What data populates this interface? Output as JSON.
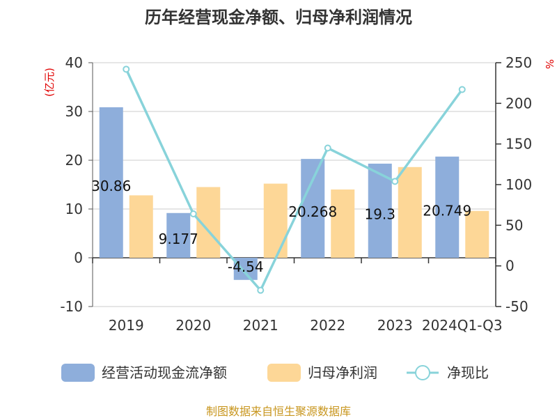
{
  "chart_data": {
    "type": "bar",
    "title": "历年经营现金净额、归母净利润情况",
    "categories": [
      "2019",
      "2020",
      "2021",
      "2022",
      "2023",
      "2024Q1-Q3"
    ],
    "series": [
      {
        "name": "经营活动现金流净额",
        "type": "bar",
        "axis": "left",
        "color": "#8eaedb",
        "values": [
          30.86,
          9.177,
          -4.54,
          20.268,
          19.3,
          20.749
        ],
        "labels": [
          "30.86",
          "9.177",
          "-4.54",
          "20.268",
          "19.3",
          "20.749"
        ]
      },
      {
        "name": "归母净利润",
        "type": "bar",
        "axis": "left",
        "color": "#fdd797",
        "values": [
          12.8,
          14.5,
          15.2,
          14.0,
          18.6,
          9.6
        ]
      },
      {
        "name": "净现比",
        "type": "line",
        "axis": "right",
        "color": "#88d3da",
        "values": [
          242,
          64,
          -30,
          145,
          104,
          217
        ]
      }
    ],
    "left_axis": {
      "unit": "(亿元)",
      "ylim": [
        -10,
        40
      ],
      "ticks": [
        -10,
        0,
        10,
        20,
        30,
        40
      ]
    },
    "right_axis": {
      "unit": "%",
      "ylim": [
        -50,
        250
      ],
      "ticks": [
        -50,
        0,
        50,
        100,
        150,
        200,
        250
      ]
    },
    "grid": true,
    "legend": "bottom"
  },
  "source": "制图数据来自恒生聚源数据库"
}
